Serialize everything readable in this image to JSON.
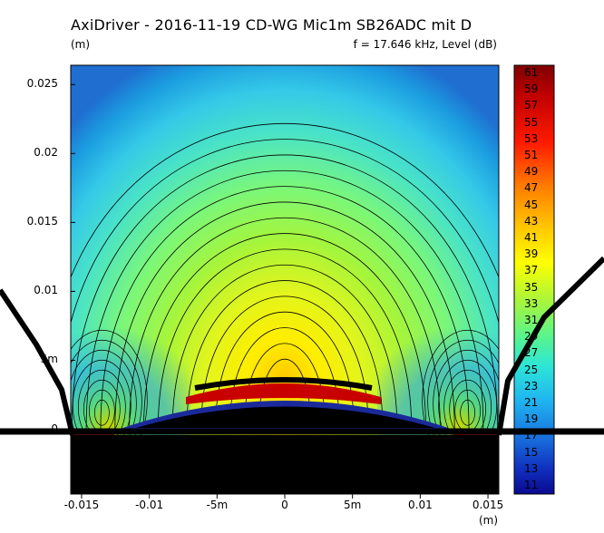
{
  "header": {
    "title": "AxiDriver - 2016-11-19 CD-WG Mic1m SB26ADC mit D",
    "y_unit": "(m)",
    "freq_label": "f = 17.646 kHz, Level  (dB)",
    "x_unit": "(m)"
  },
  "colors": {
    "background": "#ffffff",
    "geometry": "#000000",
    "dome": "#1a2a9a",
    "hot_band": "#c80000",
    "surround": "#a01010"
  },
  "chart_data": {
    "type": "heatmap",
    "title": "AxiDriver - 2016-11-19 CD-WG Mic1m SB26ADC mit D",
    "subtitle": "f = 17.646 kHz, Level  (dB)",
    "xlabel": "(m)",
    "ylabel": "(m)",
    "xlim": [
      -0.0158,
      0.0158
    ],
    "ylim": [
      -0.0047,
      0.0264
    ],
    "x_ticks": [
      {
        "value": -0.015,
        "label": "-0.015"
      },
      {
        "value": -0.01,
        "label": "-0.01"
      },
      {
        "value": -0.005,
        "label": "-5m"
      },
      {
        "value": 0,
        "label": "0"
      },
      {
        "value": 0.005,
        "label": "5m"
      },
      {
        "value": 0.01,
        "label": "0.01"
      },
      {
        "value": 0.015,
        "label": "0.015"
      }
    ],
    "y_ticks": [
      {
        "value": 0,
        "label": "0"
      },
      {
        "value": 0.005,
        "label": "5m"
      },
      {
        "value": 0.01,
        "label": "0.01"
      },
      {
        "value": 0.015,
        "label": "0.015"
      },
      {
        "value": 0.02,
        "label": "0.02"
      },
      {
        "value": 0.025,
        "label": "0.025"
      }
    ],
    "colorbar": {
      "unit": "dB",
      "min": 10,
      "max": 62,
      "labels": [
        "61",
        "59",
        "57",
        "55",
        "53",
        "51",
        "49",
        "47",
        "45",
        "43",
        "41",
        "39",
        "37",
        "35",
        "33",
        "31",
        "29",
        "27",
        "25",
        "23",
        "21",
        "19",
        "17",
        "15",
        "13",
        "11"
      ]
    },
    "field_estimate": {
      "peak_level_db": 45,
      "peak_position": [
        0,
        0.004
      ],
      "contour_step_db": 1
    },
    "grid": false
  }
}
